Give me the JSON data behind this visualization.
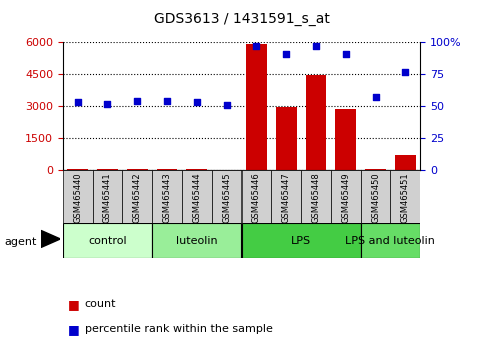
{
  "title": "GDS3613 / 1431591_s_at",
  "samples": [
    "GSM465440",
    "GSM465441",
    "GSM465442",
    "GSM465443",
    "GSM465444",
    "GSM465445",
    "GSM465446",
    "GSM465447",
    "GSM465448",
    "GSM465449",
    "GSM465450",
    "GSM465451"
  ],
  "counts": [
    50,
    30,
    60,
    20,
    30,
    15,
    5950,
    2950,
    4450,
    2850,
    60,
    700
  ],
  "percentiles": [
    53,
    52,
    54,
    54,
    53,
    51,
    97,
    91,
    97,
    91,
    57,
    77
  ],
  "groups": [
    {
      "label": "control",
      "start": 0,
      "end": 3,
      "color": "#ccffcc"
    },
    {
      "label": "luteolin",
      "start": 3,
      "end": 6,
      "color": "#99ee99"
    },
    {
      "label": "LPS",
      "start": 6,
      "end": 10,
      "color": "#44cc44"
    },
    {
      "label": "LPS and luteolin",
      "start": 10,
      "end": 12,
      "color": "#66dd66"
    }
  ],
  "bar_color": "#cc0000",
  "dot_color": "#0000cc",
  "left_ylim": [
    0,
    6000
  ],
  "left_yticks": [
    0,
    1500,
    3000,
    4500,
    6000
  ],
  "right_ylim": [
    0,
    100
  ],
  "right_yticks": [
    0,
    25,
    50,
    75,
    100
  ],
  "grid_color": "#000000",
  "bg_color": "#ffffff",
  "label_color_left": "#cc0000",
  "label_color_right": "#0000cc",
  "tick_bg_color": "#d0d0d0",
  "group_border_color": "#000000"
}
